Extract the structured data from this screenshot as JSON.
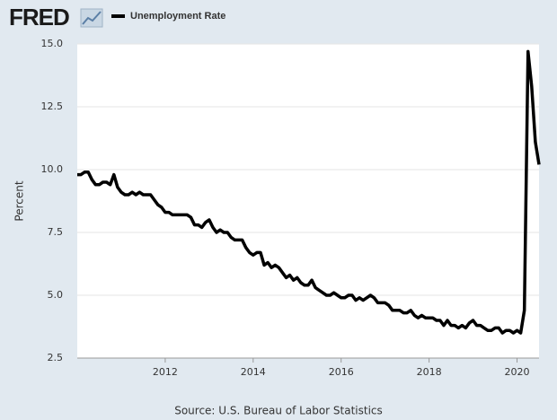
{
  "chart_data": {
    "type": "line",
    "logo": "FRED",
    "ylabel": "Percent",
    "source": "Source: U.S. Bureau of Labor Statistics",
    "ylim": [
      2.5,
      15
    ],
    "yticks": [
      2.5,
      {
        "value": 5,
        "label": "5.0"
      },
      7.5,
      {
        "value": 10,
        "label": "10.0"
      },
      12.5,
      {
        "value": 15,
        "label": "15.0"
      }
    ],
    "xlim": [
      "2010-01",
      "2020-07"
    ],
    "xticks": [
      2012,
      2014,
      2016,
      2018,
      2020
    ],
    "grid": true,
    "x": [
      "2010-01",
      "2010-02",
      "2010-03",
      "2010-04",
      "2010-05",
      "2010-06",
      "2010-07",
      "2010-08",
      "2010-09",
      "2010-10",
      "2010-11",
      "2010-12",
      "2011-01",
      "2011-02",
      "2011-03",
      "2011-04",
      "2011-05",
      "2011-06",
      "2011-07",
      "2011-08",
      "2011-09",
      "2011-10",
      "2011-11",
      "2011-12",
      "2012-01",
      "2012-02",
      "2012-03",
      "2012-04",
      "2012-05",
      "2012-06",
      "2012-07",
      "2012-08",
      "2012-09",
      "2012-10",
      "2012-11",
      "2012-12",
      "2013-01",
      "2013-02",
      "2013-03",
      "2013-04",
      "2013-05",
      "2013-06",
      "2013-07",
      "2013-08",
      "2013-09",
      "2013-10",
      "2013-11",
      "2013-12",
      "2014-01",
      "2014-02",
      "2014-03",
      "2014-04",
      "2014-05",
      "2014-06",
      "2014-07",
      "2014-08",
      "2014-09",
      "2014-10",
      "2014-11",
      "2014-12",
      "2015-01",
      "2015-02",
      "2015-03",
      "2015-04",
      "2015-05",
      "2015-06",
      "2015-07",
      "2015-08",
      "2015-09",
      "2015-10",
      "2015-11",
      "2015-12",
      "2016-01",
      "2016-02",
      "2016-03",
      "2016-04",
      "2016-05",
      "2016-06",
      "2016-07",
      "2016-08",
      "2016-09",
      "2016-10",
      "2016-11",
      "2016-12",
      "2017-01",
      "2017-02",
      "2017-03",
      "2017-04",
      "2017-05",
      "2017-06",
      "2017-07",
      "2017-08",
      "2017-09",
      "2017-10",
      "2017-11",
      "2017-12",
      "2018-01",
      "2018-02",
      "2018-03",
      "2018-04",
      "2018-05",
      "2018-06",
      "2018-07",
      "2018-08",
      "2018-09",
      "2018-10",
      "2018-11",
      "2018-12",
      "2019-01",
      "2019-02",
      "2019-03",
      "2019-04",
      "2019-05",
      "2019-06",
      "2019-07",
      "2019-08",
      "2019-09",
      "2019-10",
      "2019-11",
      "2019-12",
      "2020-01",
      "2020-02",
      "2020-03",
      "2020-04",
      "2020-05",
      "2020-06",
      "2020-07"
    ],
    "series": [
      {
        "name": "Unemployment Rate",
        "color": "#000000",
        "values": [
          9.8,
          9.8,
          9.9,
          9.9,
          9.6,
          9.4,
          9.4,
          9.5,
          9.5,
          9.4,
          9.8,
          9.3,
          9.1,
          9.0,
          9.0,
          9.1,
          9.0,
          9.1,
          9.0,
          9.0,
          9.0,
          8.8,
          8.6,
          8.5,
          8.3,
          8.3,
          8.2,
          8.2,
          8.2,
          8.2,
          8.2,
          8.1,
          7.8,
          7.8,
          7.7,
          7.9,
          8.0,
          7.7,
          7.5,
          7.6,
          7.5,
          7.5,
          7.3,
          7.2,
          7.2,
          7.2,
          6.9,
          6.7,
          6.6,
          6.7,
          6.7,
          6.2,
          6.3,
          6.1,
          6.2,
          6.1,
          5.9,
          5.7,
          5.8,
          5.6,
          5.7,
          5.5,
          5.4,
          5.4,
          5.6,
          5.3,
          5.2,
          5.1,
          5.0,
          5.0,
          5.1,
          5.0,
          4.9,
          4.9,
          5.0,
          5.0,
          4.8,
          4.9,
          4.8,
          4.9,
          5.0,
          4.9,
          4.7,
          4.7,
          4.7,
          4.6,
          4.4,
          4.4,
          4.4,
          4.3,
          4.3,
          4.4,
          4.2,
          4.1,
          4.2,
          4.1,
          4.1,
          4.1,
          4.0,
          4.0,
          3.8,
          4.0,
          3.8,
          3.8,
          3.7,
          3.8,
          3.7,
          3.9,
          4.0,
          3.8,
          3.8,
          3.7,
          3.6,
          3.6,
          3.7,
          3.7,
          3.5,
          3.6,
          3.6,
          3.5,
          3.6,
          3.5,
          4.4,
          14.7,
          13.3,
          11.1,
          10.2
        ]
      }
    ]
  }
}
